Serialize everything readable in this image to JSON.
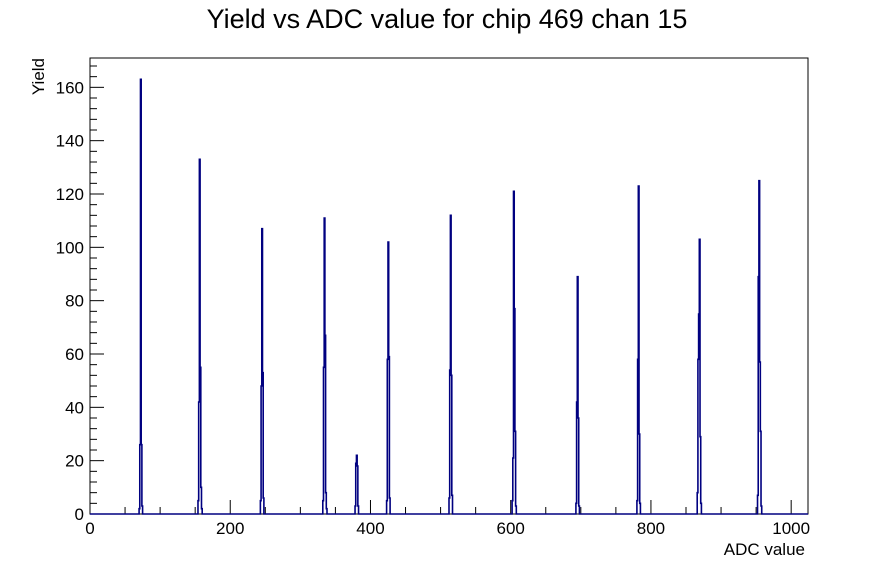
{
  "chart_data": {
    "type": "histogram",
    "title": "Yield vs ADC value for chip 469 chan 15",
    "xlabel": "ADC value",
    "ylabel": "Yield",
    "xlim": [
      0,
      1024
    ],
    "ylim": [
      0,
      171
    ],
    "x_major_ticks": [
      0,
      200,
      400,
      600,
      800,
      1000
    ],
    "y_major_ticks": [
      0,
      20,
      40,
      60,
      80,
      100,
      120,
      140,
      160
    ],
    "line_color": "#000080",
    "bins": [
      {
        "x": 70,
        "y": 2
      },
      {
        "x": 71,
        "y": 26
      },
      {
        "x": 72,
        "y": 163
      },
      {
        "x": 73,
        "y": 26
      },
      {
        "x": 74,
        "y": 3
      },
      {
        "x": 154,
        "y": 5
      },
      {
        "x": 155,
        "y": 42
      },
      {
        "x": 156,
        "y": 133
      },
      {
        "x": 157,
        "y": 55
      },
      {
        "x": 158,
        "y": 10
      },
      {
        "x": 159,
        "y": 2
      },
      {
        "x": 243,
        "y": 5
      },
      {
        "x": 244,
        "y": 48
      },
      {
        "x": 245,
        "y": 107
      },
      {
        "x": 246,
        "y": 53
      },
      {
        "x": 247,
        "y": 6
      },
      {
        "x": 332,
        "y": 5
      },
      {
        "x": 333,
        "y": 55
      },
      {
        "x": 334,
        "y": 111
      },
      {
        "x": 335,
        "y": 67
      },
      {
        "x": 336,
        "y": 8
      },
      {
        "x": 337,
        "y": 2
      },
      {
        "x": 378,
        "y": 3
      },
      {
        "x": 379,
        "y": 19
      },
      {
        "x": 380,
        "y": 22
      },
      {
        "x": 381,
        "y": 18
      },
      {
        "x": 382,
        "y": 3
      },
      {
        "x": 423,
        "y": 5
      },
      {
        "x": 424,
        "y": 58
      },
      {
        "x": 425,
        "y": 102
      },
      {
        "x": 426,
        "y": 59
      },
      {
        "x": 427,
        "y": 6
      },
      {
        "x": 512,
        "y": 6
      },
      {
        "x": 513,
        "y": 54
      },
      {
        "x": 514,
        "y": 112
      },
      {
        "x": 515,
        "y": 52
      },
      {
        "x": 516,
        "y": 7
      },
      {
        "x": 602,
        "y": 5
      },
      {
        "x": 603,
        "y": 21
      },
      {
        "x": 604,
        "y": 121
      },
      {
        "x": 605,
        "y": 77
      },
      {
        "x": 606,
        "y": 31
      },
      {
        "x": 607,
        "y": 3
      },
      {
        "x": 693,
        "y": 4
      },
      {
        "x": 694,
        "y": 42
      },
      {
        "x": 695,
        "y": 89
      },
      {
        "x": 696,
        "y": 36
      },
      {
        "x": 697,
        "y": 3
      },
      {
        "x": 780,
        "y": 5
      },
      {
        "x": 781,
        "y": 58
      },
      {
        "x": 782,
        "y": 123
      },
      {
        "x": 783,
        "y": 30
      },
      {
        "x": 784,
        "y": 4
      },
      {
        "x": 866,
        "y": 8
      },
      {
        "x": 867,
        "y": 58
      },
      {
        "x": 868,
        "y": 75
      },
      {
        "x": 869,
        "y": 103
      },
      {
        "x": 870,
        "y": 29
      },
      {
        "x": 871,
        "y": 4
      },
      {
        "x": 952,
        "y": 7
      },
      {
        "x": 953,
        "y": 89
      },
      {
        "x": 954,
        "y": 125
      },
      {
        "x": 955,
        "y": 57
      },
      {
        "x": 956,
        "y": 31
      },
      {
        "x": 957,
        "y": 3
      }
    ]
  }
}
